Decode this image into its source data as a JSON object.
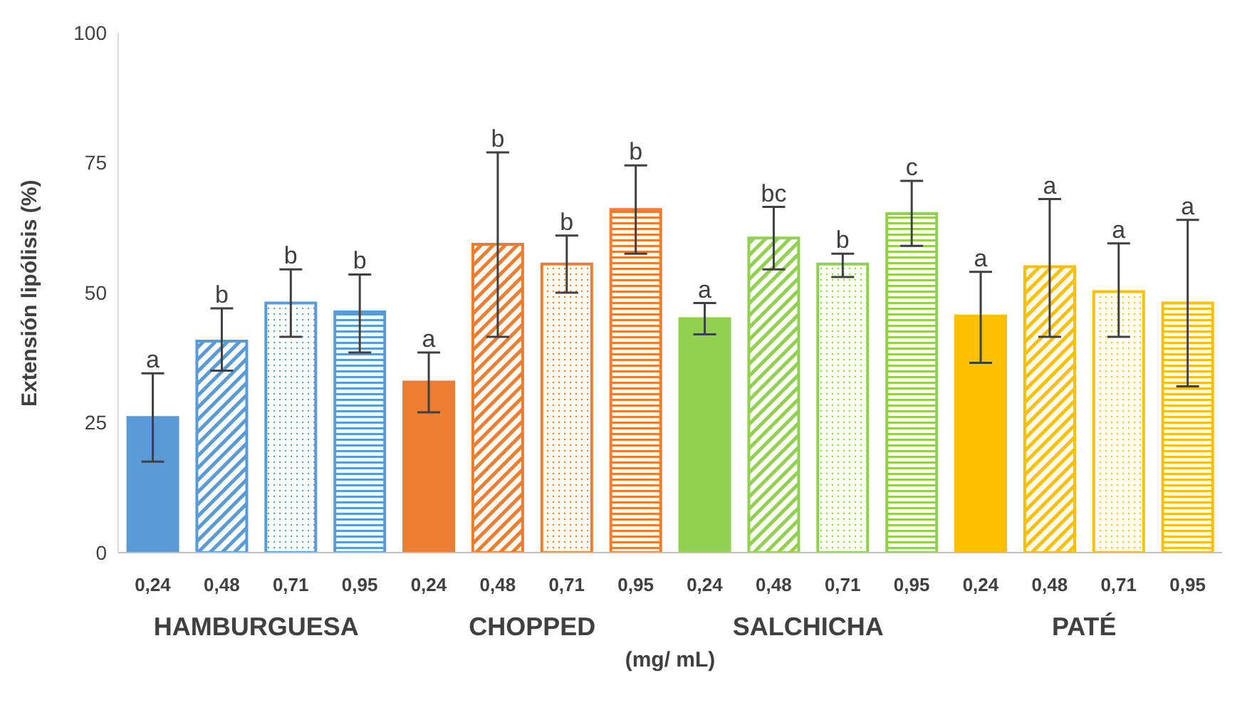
{
  "chart_data": {
    "type": "bar",
    "ylabel": "Extensión lipólisis (%)",
    "xlabel": "(mg/ mL)",
    "categories": [
      "0,24",
      "0,48",
      "0,71",
      "0,95",
      "0,24",
      "0,48",
      "0,71",
      "0,95",
      "0,24",
      "0,48",
      "0,71",
      "0,95",
      "0,24",
      "0,48",
      "0,71",
      "0,95"
    ],
    "values": [
      26,
      40.7,
      48,
      46.3,
      32.8,
      59.3,
      55.5,
      66,
      45,
      60.5,
      55.5,
      65.2,
      45.5,
      55,
      50.2,
      48
    ],
    "errors": [
      [
        17.5,
        34.5
      ],
      [
        35,
        47
      ],
      [
        41.5,
        54.5
      ],
      [
        38.5,
        53.5
      ],
      [
        27,
        38.5
      ],
      [
        41.5,
        77
      ],
      [
        50,
        61
      ],
      [
        57.5,
        74.5
      ],
      [
        42,
        48
      ],
      [
        54.5,
        66.5
      ],
      [
        53,
        57.5
      ],
      [
        59,
        71.5
      ],
      [
        36.5,
        54
      ],
      [
        41.5,
        68
      ],
      [
        41.5,
        59.5
      ],
      [
        32,
        64
      ]
    ],
    "colors": [
      "#5b9bd5",
      "#5b9bd5",
      "#5b9bd5",
      "#5b9bd5",
      "#ed7d31",
      "#ed7d31",
      "#ed7d31",
      "#ed7d31",
      "#92d050",
      "#92d050",
      "#92d050",
      "#92d050",
      "#ffc000",
      "#ffc000",
      "#ffc000",
      "#ffc000"
    ],
    "annotations": [
      "HAMBURGUESA",
      "CHOPPED",
      "SALCHICHA",
      "PATÉ",
      "a",
      "b",
      "b",
      "b",
      "a",
      "b",
      "b",
      "b",
      "a",
      "bc",
      "b",
      "c",
      "a",
      "a",
      "a",
      "a"
    ],
    "ylim": [
      0,
      100
    ],
    "yticks": [
      0,
      25,
      50,
      75,
      100
    ],
    "grid": false,
    "legend": false
  }
}
